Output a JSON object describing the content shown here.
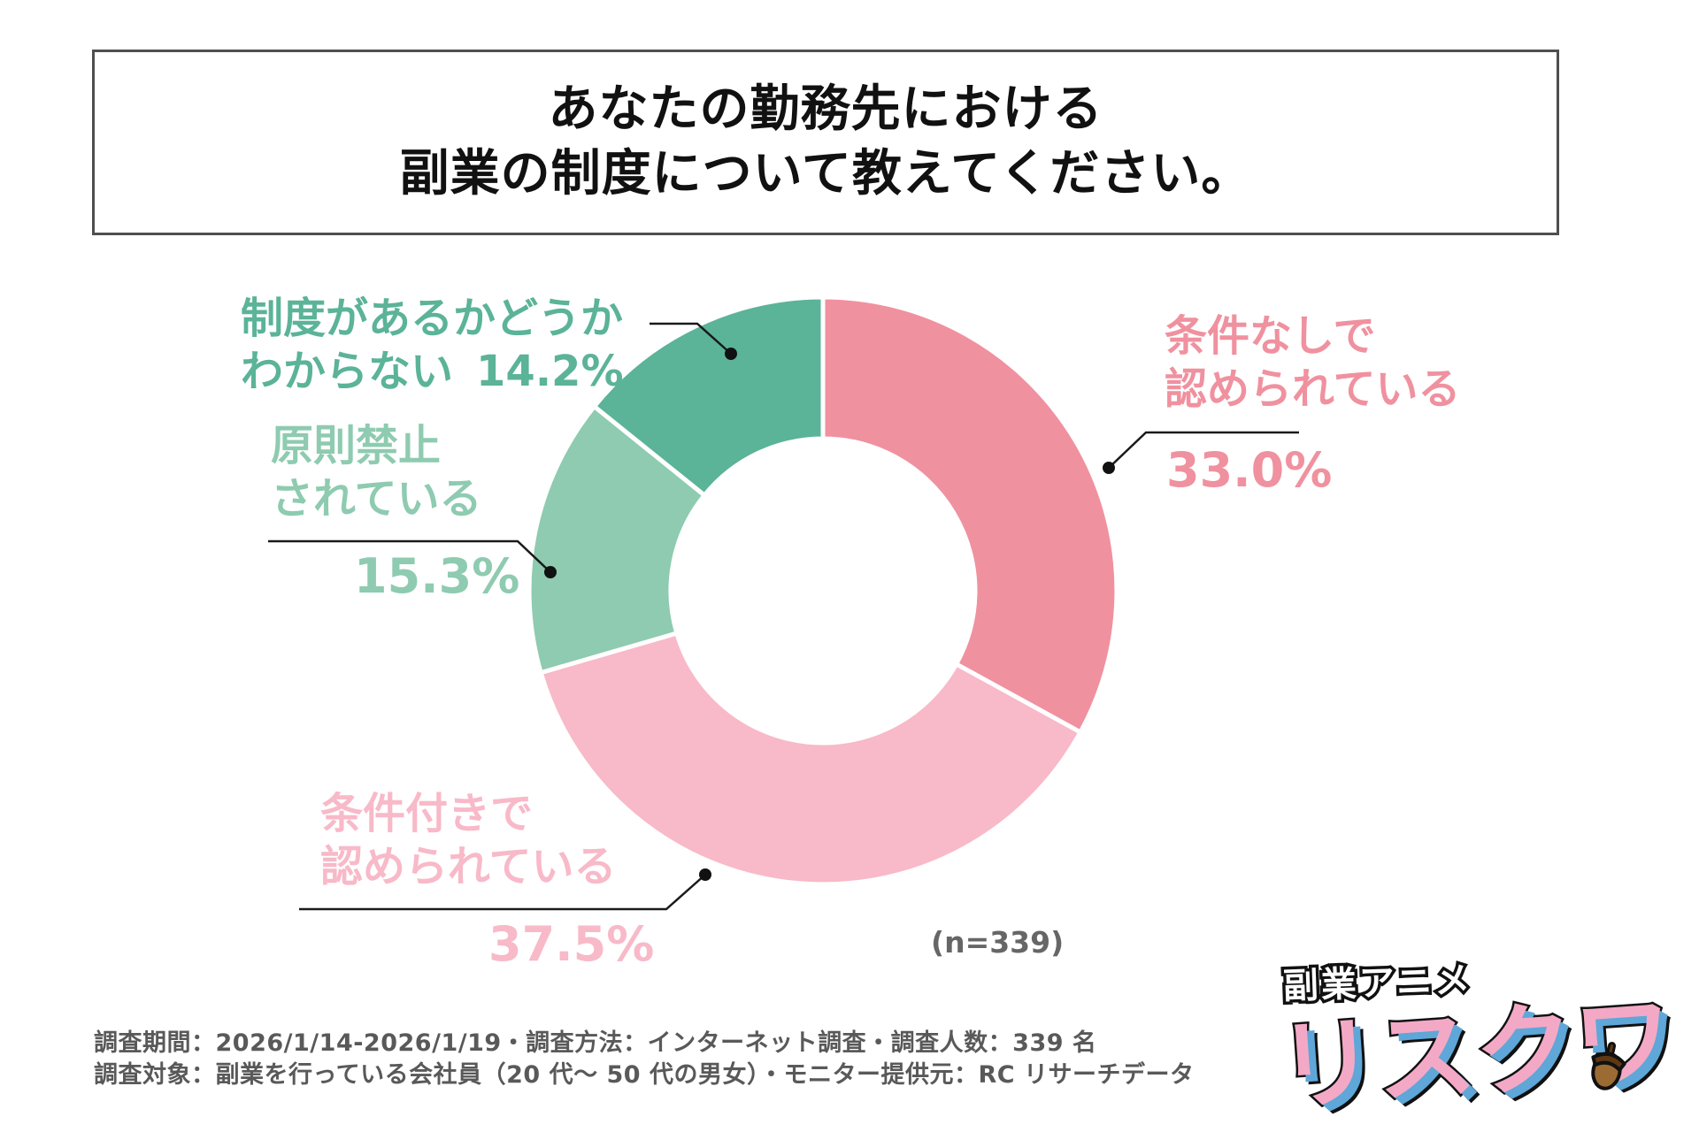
{
  "title": {
    "line1": "あなたの勤務先における",
    "line2": "副業の制度について教えてください。"
  },
  "chart_data": {
    "type": "pie",
    "donut": true,
    "start_angle_deg": 0,
    "direction": "clockwise",
    "total": 100,
    "n_label": "(n=339)",
    "slices": [
      {
        "label_line1": "条件なしで",
        "label_line2": "認められている",
        "value": 33.0,
        "pct_label": "33.0%",
        "color": "#f0919f"
      },
      {
        "label_line1": "条件付きで",
        "label_line2": "認められている",
        "value": 37.5,
        "pct_label": "37.5%",
        "color": "#f8b9c8"
      },
      {
        "label_line1": "原則禁止",
        "label_line2": "されている",
        "value": 15.3,
        "pct_label": "15.3%",
        "color": "#8ecbb0"
      },
      {
        "label_line1": "制度があるかどうか",
        "label_line2": "わからない",
        "value": 14.2,
        "pct_label": "14.2%",
        "color": "#5bb398"
      }
    ]
  },
  "footer": {
    "line1": "調査期間：2026/1/14-2026/1/19・調査方法：インターネット調査・調査人数：339 名",
    "line2": "調査対象：副業を行っている会社員（20 代～ 50 代の男女）・モニター提供元：RC リサーチデータ"
  },
  "logo": {
    "top_text": "副業アニメ",
    "main_text": "リスクワ"
  }
}
